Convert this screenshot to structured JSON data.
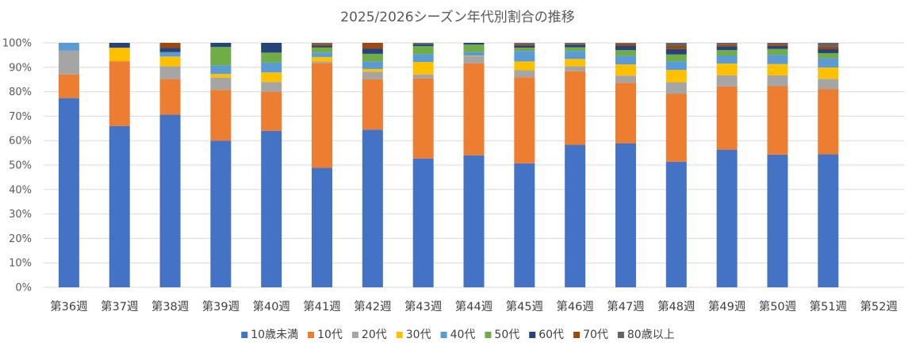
{
  "chart_data": {
    "type": "bar",
    "stacked": true,
    "title": "2025/2026シーズン年代別割合の推移",
    "xlabel": "",
    "ylabel": "",
    "ylim": [
      0,
      100
    ],
    "y_ticks": [
      "0%",
      "10%",
      "20%",
      "30%",
      "40%",
      "50%",
      "60%",
      "70%",
      "80%",
      "90%",
      "100%"
    ],
    "legend_position": "bottom",
    "categories": [
      "第36週",
      "第37週",
      "第38週",
      "第39週",
      "第40週",
      "第41週",
      "第42週",
      "第43週",
      "第44週",
      "第45週",
      "第46週",
      "第47週",
      "第48週",
      "第49週",
      "第50週",
      "第51週",
      "第52週"
    ],
    "series": [
      {
        "name": "10歳未満",
        "color": "#4472C4",
        "values": [
          77.4,
          66.0,
          70.6,
          60.0,
          64.0,
          48.9,
          64.5,
          52.7,
          54.0,
          50.7,
          58.3,
          58.9,
          51.4,
          56.3,
          54.3,
          54.4,
          0
        ]
      },
      {
        "name": "10代",
        "color": "#ED7D31",
        "values": [
          9.7,
          26.5,
          14.6,
          20.8,
          16.0,
          42.9,
          20.6,
          32.8,
          37.6,
          35.2,
          30.1,
          24.8,
          27.8,
          25.9,
          28.0,
          26.6,
          0
        ]
      },
      {
        "name": "20代",
        "color": "#A5A5A5",
        "values": [
          9.7,
          0,
          5.2,
          5.0,
          4.0,
          0.6,
          3.1,
          1.6,
          3.0,
          2.9,
          2.0,
          2.9,
          4.7,
          4.5,
          4.4,
          4.3,
          0
        ]
      },
      {
        "name": "30代",
        "color": "#FFC000",
        "values": [
          0,
          5.5,
          4.0,
          1.5,
          3.9,
          1.8,
          1.1,
          5.1,
          0.2,
          3.6,
          3.0,
          4.6,
          5.0,
          4.8,
          4.6,
          4.6,
          0
        ]
      },
      {
        "name": "40代",
        "color": "#5B9BD5",
        "values": [
          3.2,
          0,
          1.8,
          3.5,
          4.1,
          1.8,
          3.1,
          3.2,
          1.5,
          4.3,
          3.3,
          3.5,
          3.6,
          3.3,
          3.8,
          3.8,
          0
        ]
      },
      {
        "name": "50代",
        "color": "#70AD47",
        "values": [
          0,
          0,
          0,
          7.5,
          4.0,
          2.1,
          3.1,
          3.3,
          3.0,
          1.3,
          1.5,
          2.3,
          2.8,
          2.2,
          2.4,
          2.1,
          0
        ]
      },
      {
        "name": "60代",
        "color": "#264478",
        "values": [
          0,
          2.0,
          1.7,
          1.7,
          4.0,
          0.6,
          2.2,
          0.7,
          0.7,
          0.9,
          1.1,
          1.9,
          2.2,
          1.6,
          1.3,
          1.6,
          0
        ]
      },
      {
        "name": "70代",
        "color": "#9E480E",
        "values": [
          0,
          0,
          2.1,
          0,
          0,
          0.7,
          2.3,
          0,
          0,
          0.5,
          0.3,
          0.8,
          1.2,
          0.7,
          0.7,
          1.0,
          0
        ]
      },
      {
        "name": "80歳以上",
        "color": "#636363",
        "values": [
          0,
          0,
          0,
          0,
          0,
          0.6,
          0,
          0.6,
          0,
          0.6,
          0.4,
          0.3,
          1.3,
          0.7,
          0.5,
          1.6,
          0
        ]
      }
    ]
  }
}
